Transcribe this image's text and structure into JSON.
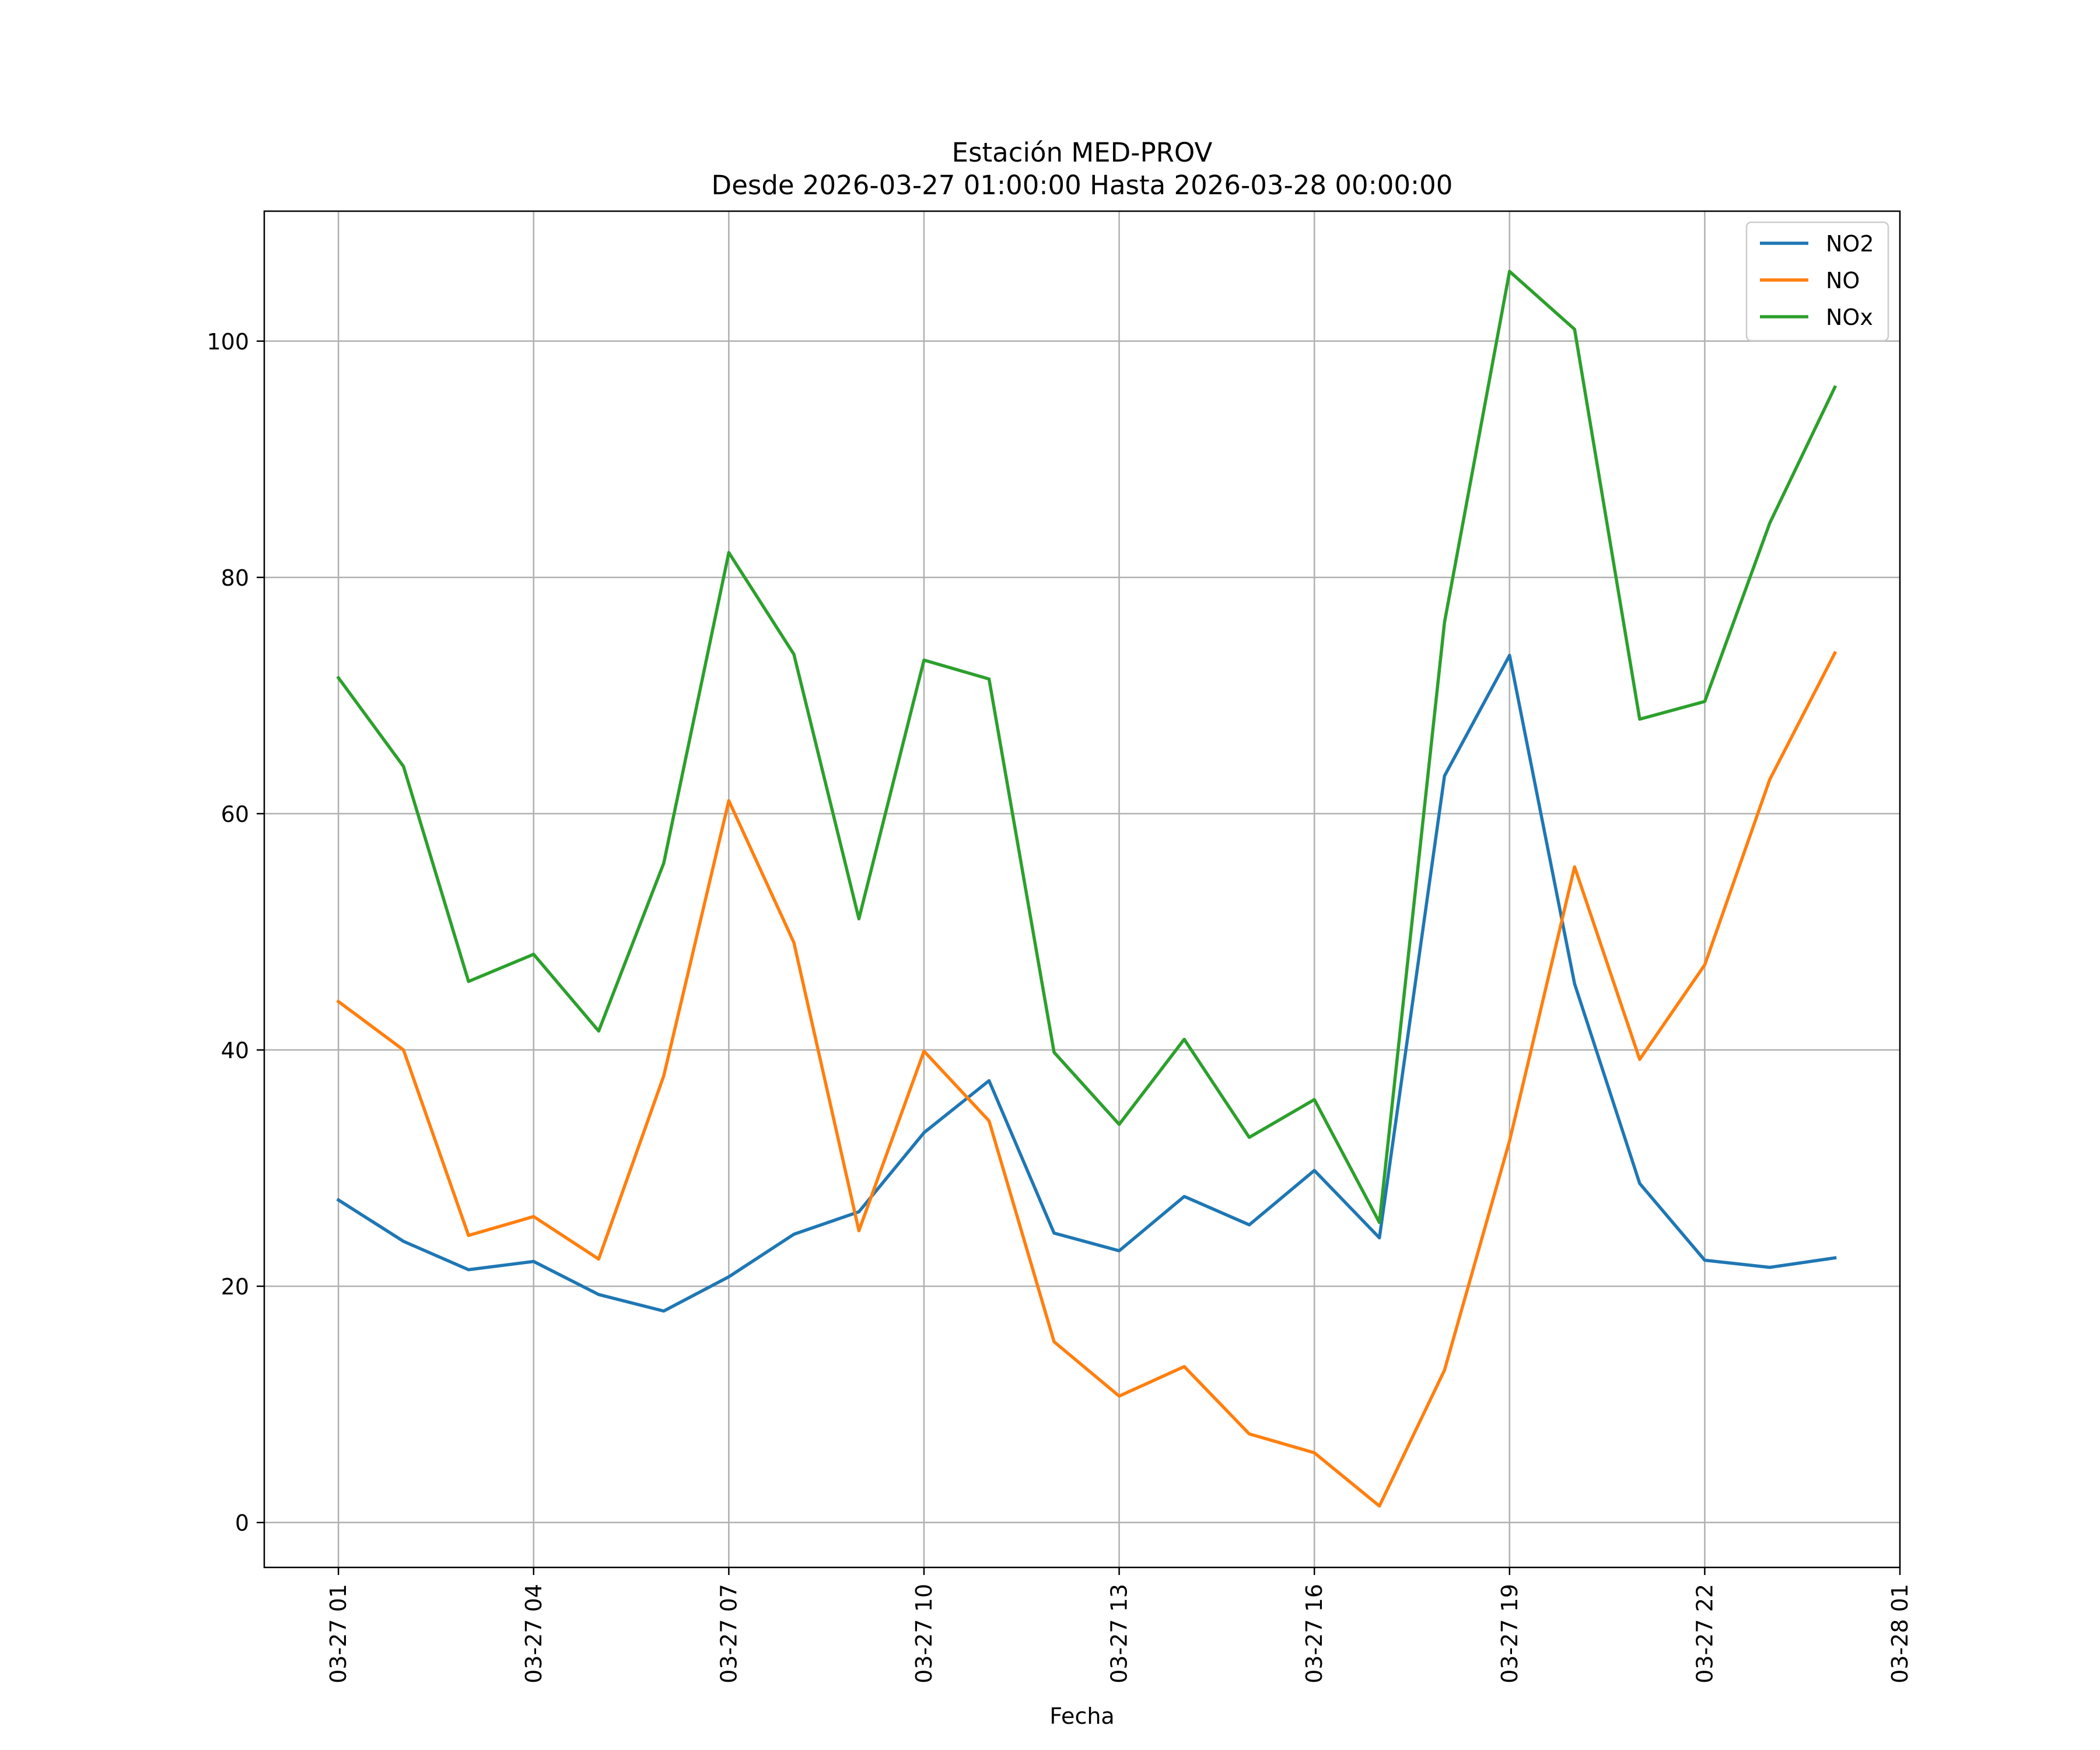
{
  "chart_data": {
    "type": "line",
    "title": "Estación MED-PROV",
    "subtitle": "Desde 2026-03-27 01:00:00 Hasta 2026-03-28 00:00:00",
    "xlabel": "Fecha",
    "ylabel": "",
    "x_hours": [
      1,
      2,
      3,
      4,
      5,
      6,
      7,
      8,
      9,
      10,
      11,
      12,
      13,
      14,
      15,
      16,
      17,
      18,
      19,
      20,
      21,
      22,
      23,
      24
    ],
    "xlim": [
      -0.14,
      25.0
    ],
    "ylim": [
      -3.8,
      111.0
    ],
    "x_ticks": [
      {
        "hour": 1,
        "label": "03-27 01"
      },
      {
        "hour": 4,
        "label": "03-27 04"
      },
      {
        "hour": 7,
        "label": "03-27 07"
      },
      {
        "hour": 10,
        "label": "03-27 10"
      },
      {
        "hour": 13,
        "label": "03-27 13"
      },
      {
        "hour": 16,
        "label": "03-27 16"
      },
      {
        "hour": 19,
        "label": "03-27 19"
      },
      {
        "hour": 22,
        "label": "03-27 22"
      },
      {
        "hour": 25,
        "label": "03-28 01"
      }
    ],
    "y_ticks": [
      {
        "value": 0,
        "label": "0"
      },
      {
        "value": 20,
        "label": "20"
      },
      {
        "value": 40,
        "label": "40"
      },
      {
        "value": 60,
        "label": "60"
      },
      {
        "value": 80,
        "label": "80"
      },
      {
        "value": 100,
        "label": "100"
      }
    ],
    "grid": true,
    "legend_position": "top-right",
    "series": [
      {
        "name": "NO2",
        "color": "#1f77b4",
        "values": [
          27.3,
          23.8,
          21.4,
          22.1,
          19.3,
          17.9,
          20.8,
          24.4,
          26.3,
          33.0,
          37.4,
          24.5,
          23.0,
          27.6,
          25.2,
          29.8,
          24.1,
          63.2,
          73.4,
          45.6,
          28.7,
          22.2,
          21.6,
          22.4
        ]
      },
      {
        "name": "NO",
        "color": "#ff7f0e",
        "values": [
          44.1,
          40.0,
          24.3,
          25.9,
          22.3,
          37.8,
          61.1,
          49.1,
          24.7,
          39.9,
          34.0,
          15.3,
          10.7,
          13.2,
          7.5,
          5.9,
          1.4,
          12.9,
          32.3,
          55.5,
          39.2,
          47.2,
          62.9,
          73.6
        ]
      },
      {
        "name": "NOx",
        "color": "#2ca02c",
        "values": [
          71.5,
          64.0,
          45.8,
          48.1,
          41.6,
          55.8,
          82.1,
          73.5,
          51.1,
          73.0,
          71.4,
          39.8,
          33.7,
          40.9,
          32.6,
          35.8,
          25.4,
          76.2,
          105.9,
          101.0,
          68.0,
          69.5,
          84.6,
          96.1
        ]
      }
    ]
  }
}
